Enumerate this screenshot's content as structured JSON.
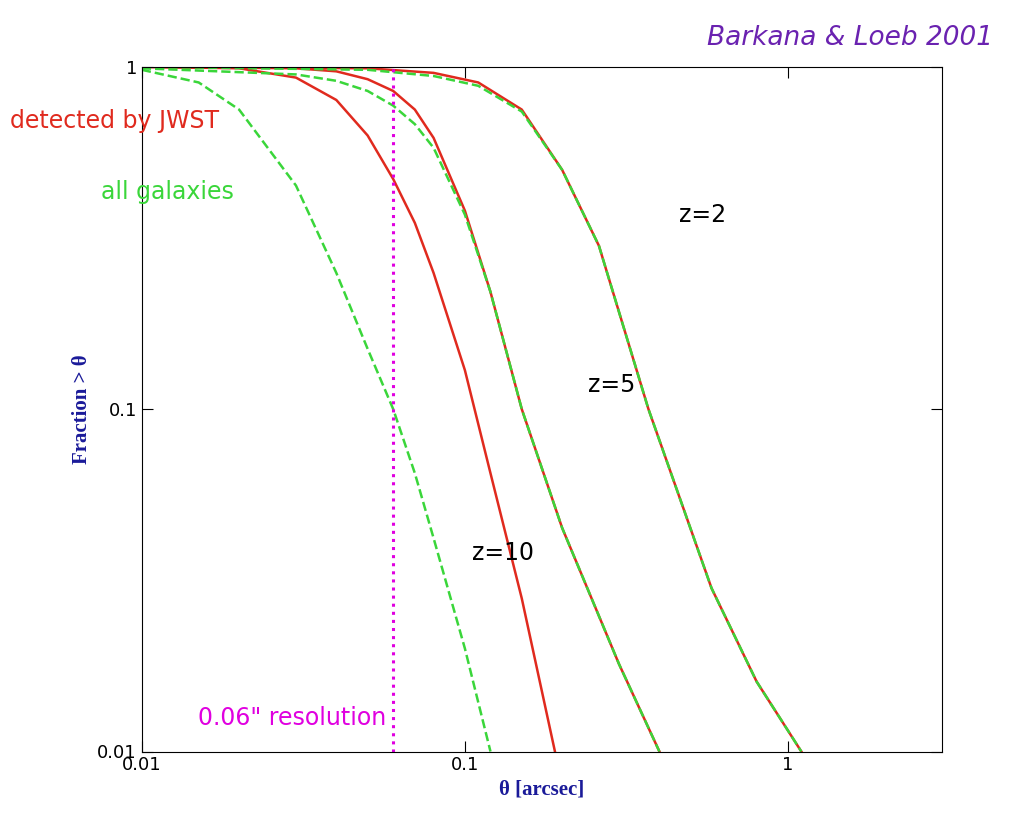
{
  "chart_data": {
    "type": "line",
    "x_label": "θ [arcsec]",
    "y_label": "Fraction > θ",
    "log": true,
    "grid": false,
    "xlim": [
      0.01,
      3
    ],
    "ylim": [
      0.01,
      1
    ],
    "xticks": [
      0.01,
      0.1,
      1
    ],
    "yticks": [
      0.01,
      0.1,
      1
    ],
    "annotation": {
      "text": "Barkana & Loeb 2001",
      "color": "#6a22b0"
    },
    "vline": {
      "x": 0.06,
      "label": "0.06\" resolution",
      "color": "#e000e0",
      "line_style": "dotted"
    },
    "series": [
      {
        "name": "z=2",
        "group": "detected by JWST",
        "color": "#e02a1e",
        "line_style": "solid",
        "x": [
          0.01,
          0.05,
          0.08,
          0.11,
          0.15,
          0.2,
          0.26,
          0.37,
          0.58,
          0.8,
          1.1
        ],
        "values": [
          1,
          0.99,
          0.96,
          0.9,
          0.75,
          0.5,
          0.3,
          0.1,
          0.03,
          0.016,
          0.01
        ]
      },
      {
        "name": "z=2",
        "group": "all galaxies",
        "color": "#3ad63a",
        "line_style": "dashed",
        "x": [
          0.01,
          0.05,
          0.08,
          0.11,
          0.15,
          0.2,
          0.26,
          0.37,
          0.58,
          0.8,
          1.1
        ],
        "values": [
          1,
          0.98,
          0.94,
          0.88,
          0.74,
          0.5,
          0.3,
          0.1,
          0.03,
          0.016,
          0.01
        ]
      },
      {
        "name": "z=5",
        "group": "detected by JWST",
        "color": "#e02a1e",
        "line_style": "solid",
        "x": [
          0.01,
          0.03,
          0.04,
          0.05,
          0.06,
          0.07,
          0.08,
          0.1,
          0.12,
          0.15,
          0.2,
          0.3,
          0.4
        ],
        "values": [
          1,
          0.99,
          0.97,
          0.92,
          0.85,
          0.75,
          0.62,
          0.38,
          0.22,
          0.1,
          0.045,
          0.018,
          0.01
        ]
      },
      {
        "name": "z=5",
        "group": "all galaxies",
        "color": "#3ad63a",
        "line_style": "dashed",
        "x": [
          0.01,
          0.03,
          0.04,
          0.05,
          0.06,
          0.07,
          0.08,
          0.1,
          0.12,
          0.15,
          0.2,
          0.3,
          0.4
        ],
        "values": [
          0.99,
          0.95,
          0.91,
          0.85,
          0.77,
          0.68,
          0.58,
          0.37,
          0.22,
          0.1,
          0.045,
          0.018,
          0.01
        ]
      },
      {
        "name": "z=10",
        "group": "detected by JWST",
        "color": "#e02a1e",
        "line_style": "solid",
        "x": [
          0.01,
          0.02,
          0.03,
          0.04,
          0.05,
          0.06,
          0.07,
          0.08,
          0.1,
          0.12,
          0.15,
          0.19
        ],
        "values": [
          1,
          0.99,
          0.93,
          0.8,
          0.63,
          0.47,
          0.35,
          0.25,
          0.13,
          0.065,
          0.028,
          0.01
        ]
      },
      {
        "name": "z=10",
        "group": "all galaxies",
        "color": "#3ad63a",
        "line_style": "dashed",
        "x": [
          0.01,
          0.015,
          0.02,
          0.03,
          0.04,
          0.05,
          0.06,
          0.07,
          0.08,
          0.1,
          0.12
        ],
        "values": [
          0.98,
          0.9,
          0.75,
          0.45,
          0.25,
          0.15,
          0.1,
          0.065,
          0.042,
          0.02,
          0.01
        ]
      }
    ]
  }
}
